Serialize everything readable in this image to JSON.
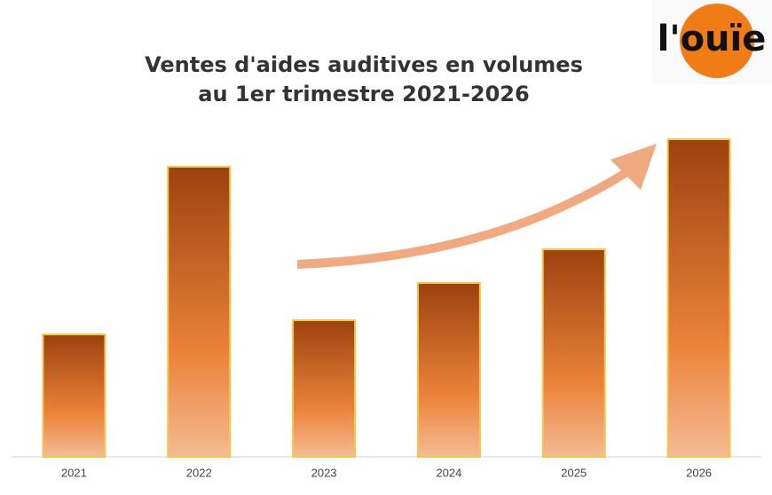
{
  "chart_data": {
    "type": "bar",
    "title": [
      "Ventes d'aides auditives en volumes",
      "au 1er trimestre 2021-2026"
    ],
    "logo": "l'ouïe",
    "categories": [
      "2021",
      "2022",
      "2023",
      "2024",
      "2025",
      "2026"
    ],
    "values": [
      138,
      327,
      154,
      196,
      234,
      358
    ],
    "ylim": [
      0,
      380
    ],
    "color": "#e8823a"
  }
}
